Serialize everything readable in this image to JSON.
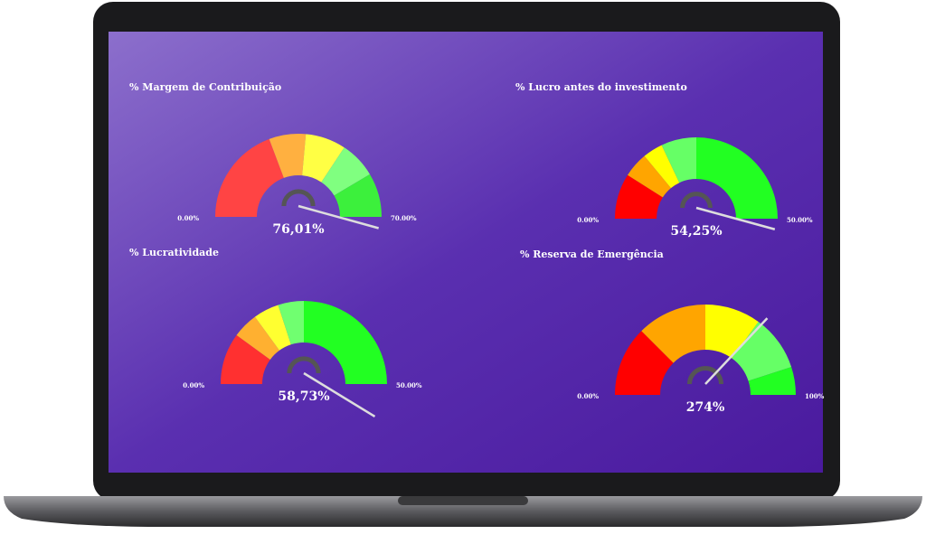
{
  "chart_data": [
    {
      "type": "gauge",
      "title": "% Margem de Contribuição",
      "values": [
        76.01
      ],
      "value_labels": [
        "76,01%"
      ],
      "ylim": [
        0,
        70
      ],
      "yticks": [
        {
          "value": 0,
          "label": "0.00%"
        },
        {
          "value": 70,
          "label": "70.00%"
        }
      ],
      "bands": [
        {
          "to": 27,
          "color": "#ff4444"
        },
        {
          "to": 37,
          "color": "#ffb040"
        },
        {
          "to": 48,
          "color": "#ffff44"
        },
        {
          "to": 58,
          "color": "#80ff80"
        },
        {
          "to": 70,
          "color": "#3cf03c"
        }
      ]
    },
    {
      "type": "gauge",
      "title": "% Lucro antes do investimento",
      "values": [
        54.25
      ],
      "value_labels": [
        "54,25%"
      ],
      "ylim": [
        0,
        50
      ],
      "yticks": [
        {
          "value": 0,
          "label": "0.00%"
        },
        {
          "value": 50,
          "label": "50.00%"
        }
      ],
      "bands": [
        {
          "to": 9,
          "color": "#ff0000"
        },
        {
          "to": 14,
          "color": "#ffa500"
        },
        {
          "to": 18,
          "color": "#ffff00"
        },
        {
          "to": 25,
          "color": "#66ff66"
        },
        {
          "to": 50,
          "color": "#22ff22"
        }
      ]
    },
    {
      "type": "gauge",
      "title": "% Lucratividade",
      "values": [
        58.73
      ],
      "value_labels": [
        "58,73%"
      ],
      "ylim": [
        0,
        50
      ],
      "yticks": [
        {
          "value": 0,
          "label": "0.00%"
        },
        {
          "value": 50,
          "label": "50.00%"
        }
      ],
      "bands": [
        {
          "to": 10,
          "color": "#ff3030"
        },
        {
          "to": 15,
          "color": "#ffb030"
        },
        {
          "to": 20,
          "color": "#ffff30"
        },
        {
          "to": 25,
          "color": "#70ff70"
        },
        {
          "to": 50,
          "color": "#22ff22"
        }
      ]
    },
    {
      "type": "gauge",
      "title": "% Reserva de Emergência",
      "values": [
        274
      ],
      "value_labels": [
        "274%"
      ],
      "ylim": [
        0,
        100
      ],
      "yticks": [
        {
          "value": 0,
          "label": "0.00%"
        },
        {
          "value": 100,
          "label": "100%"
        }
      ],
      "bands": [
        {
          "to": 25,
          "color": "#ff0000"
        },
        {
          "to": 50,
          "color": "#ffa500"
        },
        {
          "to": 70,
          "color": "#ffff00"
        },
        {
          "to": 90,
          "color": "#66ff66"
        },
        {
          "to": 100,
          "color": "#22ff22"
        }
      ]
    }
  ]
}
